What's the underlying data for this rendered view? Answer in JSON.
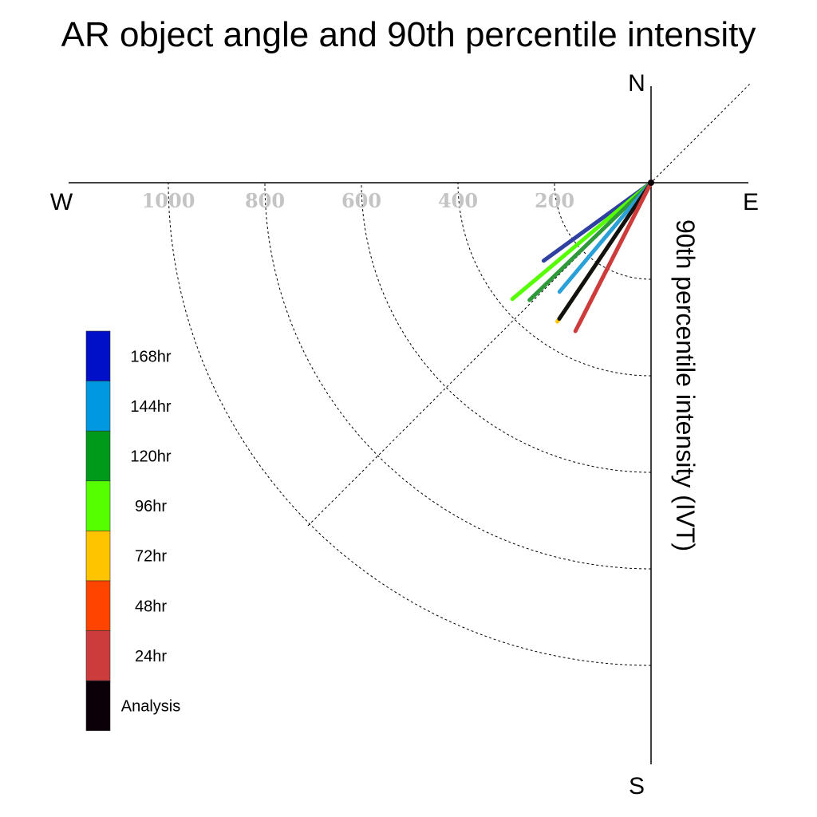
{
  "chart_data": {
    "type": "polar-vector",
    "title": "AR object angle and 90th percentile intensity",
    "ylabel": "90th percentile intensity (IVT)",
    "compass": {
      "north": "N",
      "south": "S",
      "east": "E",
      "west": "W"
    },
    "radial_ticks": [
      "200",
      "400",
      "600",
      "800",
      "1000"
    ],
    "radial_rings": [
      200,
      400,
      600,
      800,
      1000
    ],
    "radial_max": 1000,
    "grid": true,
    "legend_position": "left",
    "legend": [
      {
        "label": "168hr",
        "color": "#0010c8"
      },
      {
        "label": "144hr",
        "color": "#0098e0"
      },
      {
        "label": "120hr",
        "color": "#009a1a"
      },
      {
        "label": "96hr",
        "color": "#55ff00"
      },
      {
        "label": "72hr",
        "color": "#ffc400"
      },
      {
        "label": "48hr",
        "color": "#ff4400"
      },
      {
        "label": "24hr",
        "color": "#cc3c3c"
      },
      {
        "label": "Analysis",
        "color": "#0b0008"
      }
    ],
    "series": [
      {
        "name": "168hr",
        "color": "#3040a0",
        "angle_deg_west_of_south": 54,
        "intensity": 275
      },
      {
        "name": "96hr",
        "color": "#55ff00",
        "angle_deg_west_of_south": 50,
        "intensity": 375
      },
      {
        "name": "120hr",
        "color": "#2e9a3a",
        "angle_deg_west_of_south": 46,
        "intensity": 350
      },
      {
        "name": "144hr",
        "color": "#2aa0d8",
        "angle_deg_west_of_south": 40,
        "intensity": 295
      },
      {
        "name": "72hr",
        "color": "#ffc400",
        "angle_deg_west_of_south": 34,
        "intensity": 347
      },
      {
        "name": "Analysis",
        "color": "#111111",
        "angle_deg_west_of_south": 34,
        "intensity": 340
      },
      {
        "name": "48hr",
        "color": "#ff4400",
        "angle_deg_west_of_south": 27,
        "intensity": 330
      },
      {
        "name": "24hr",
        "color": "#cc3c3c",
        "angle_deg_west_of_south": 27,
        "intensity": 345
      }
    ]
  }
}
